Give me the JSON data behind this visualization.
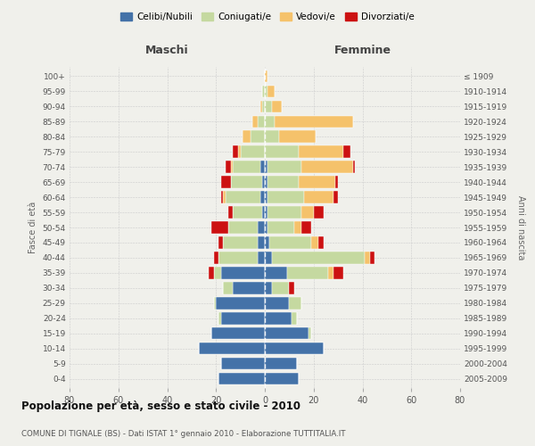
{
  "age_groups": [
    "0-4",
    "5-9",
    "10-14",
    "15-19",
    "20-24",
    "25-29",
    "30-34",
    "35-39",
    "40-44",
    "45-49",
    "50-54",
    "55-59",
    "60-64",
    "65-69",
    "70-74",
    "75-79",
    "80-84",
    "85-89",
    "90-94",
    "95-99",
    "100+"
  ],
  "birth_years": [
    "2005-2009",
    "2000-2004",
    "1995-1999",
    "1990-1994",
    "1985-1989",
    "1980-1984",
    "1975-1979",
    "1970-1974",
    "1965-1969",
    "1960-1964",
    "1955-1959",
    "1950-1954",
    "1945-1949",
    "1940-1944",
    "1935-1939",
    "1930-1934",
    "1925-1929",
    "1920-1924",
    "1915-1919",
    "1910-1914",
    "≤ 1909"
  ],
  "maschi": {
    "celibi": [
      19,
      18,
      27,
      22,
      18,
      20,
      13,
      18,
      3,
      3,
      3,
      1,
      2,
      1,
      2,
      0,
      0,
      0,
      0,
      0,
      0
    ],
    "coniugati": [
      0,
      0,
      0,
      0,
      1,
      1,
      4,
      3,
      16,
      14,
      12,
      12,
      14,
      13,
      11,
      10,
      6,
      3,
      1,
      1,
      0
    ],
    "vedovi": [
      0,
      0,
      0,
      0,
      0,
      0,
      0,
      0,
      0,
      0,
      0,
      0,
      1,
      0,
      1,
      1,
      3,
      2,
      1,
      0,
      0
    ],
    "divorziati": [
      0,
      0,
      0,
      0,
      0,
      0,
      0,
      2,
      2,
      2,
      7,
      2,
      1,
      4,
      2,
      2,
      0,
      0,
      0,
      0,
      0
    ]
  },
  "femmine": {
    "nubili": [
      14,
      13,
      24,
      18,
      11,
      10,
      3,
      9,
      3,
      2,
      1,
      1,
      1,
      1,
      1,
      0,
      0,
      0,
      0,
      0,
      0
    ],
    "coniugate": [
      0,
      0,
      0,
      1,
      2,
      5,
      7,
      17,
      38,
      17,
      11,
      14,
      15,
      13,
      14,
      14,
      6,
      4,
      3,
      1,
      0
    ],
    "vedove": [
      0,
      0,
      0,
      0,
      0,
      0,
      0,
      2,
      2,
      3,
      3,
      5,
      12,
      15,
      21,
      18,
      15,
      32,
      4,
      3,
      1
    ],
    "divorziate": [
      0,
      0,
      0,
      0,
      0,
      0,
      2,
      4,
      2,
      2,
      4,
      4,
      2,
      1,
      1,
      3,
      0,
      0,
      0,
      0,
      0
    ]
  },
  "colors": {
    "celibi": "#4472a8",
    "coniugati": "#c5d9a0",
    "vedovi": "#f5c26b",
    "divorziati": "#cc1111"
  },
  "title": "Popolazione per età, sesso e stato civile - 2010",
  "subtitle": "COMUNE DI TIGNALE (BS) - Dati ISTAT 1° gennaio 2010 - Elaborazione TUTTITALIA.IT",
  "xlabel_left": "Maschi",
  "xlabel_right": "Femmine",
  "ylabel_left": "Fasce di età",
  "ylabel_right": "Anni di nascita",
  "legend_labels": [
    "Celibi/Nubili",
    "Coniugati/e",
    "Vedovi/e",
    "Divorziati/e"
  ],
  "xlim": 80,
  "background": "#f0f0eb"
}
